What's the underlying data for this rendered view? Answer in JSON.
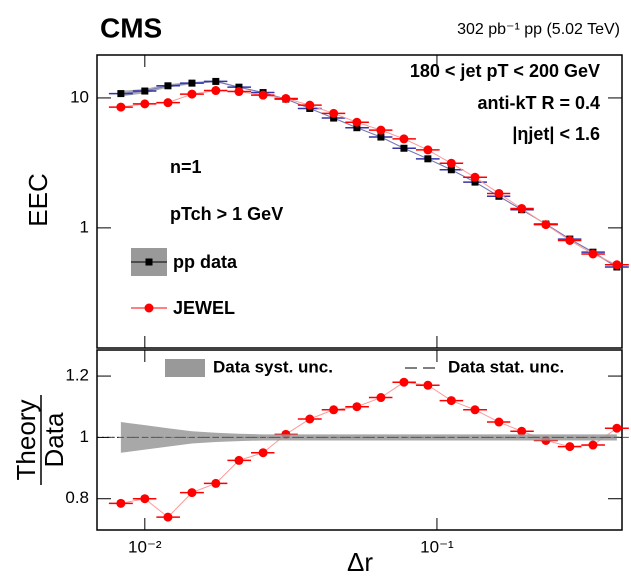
{
  "chart_data": [
    {
      "type": "scatter",
      "title": "CMS",
      "subtitle": "302 pb⁻¹ pp (5.02 TeV)",
      "ylabel": "EEC",
      "annotations": [
        "180 < jet pT < 200 GeV",
        "anti-kT R = 0.4",
        "|ηjet| < 1.6",
        "n=1",
        "pTch > 1 GeV"
      ],
      "logx": true,
      "logy": true,
      "x": [
        0.00828,
        0.01,
        0.012,
        0.0145,
        0.0175,
        0.021,
        0.0254,
        0.0304,
        0.0367,
        0.0443,
        0.0532,
        0.0643,
        0.0771,
        0.0931,
        0.112,
        0.135,
        0.163,
        0.195,
        0.236,
        0.285,
        0.342,
        0.413
      ],
      "series": [
        {
          "name": "pp data",
          "color": "#000000",
          "band_color": "#999999",
          "values": [
            10.8,
            11.3,
            12.4,
            13.0,
            13.4,
            12.1,
            11.0,
            9.8,
            8.3,
            7.0,
            5.9,
            5.0,
            4.1,
            3.4,
            2.8,
            2.25,
            1.75,
            1.38,
            1.07,
            0.82,
            0.65,
            0.5
          ],
          "yerr": [
            0.54,
            0.45,
            0.37,
            0.26,
            0.2,
            0.15,
            0.11,
            0.1,
            0.08,
            0.07,
            0.06,
            0.05,
            0.04,
            0.03,
            0.03,
            0.02,
            0.02,
            0.01,
            0.01,
            0.01,
            0.01,
            0.01
          ]
        },
        {
          "name": "JEWEL",
          "color": "#ff0000",
          "values": [
            8.5,
            9.0,
            9.2,
            10.7,
            11.4,
            11.2,
            10.5,
            9.9,
            8.8,
            7.6,
            6.5,
            5.65,
            4.84,
            3.98,
            3.14,
            2.45,
            1.84,
            1.41,
            1.06,
            0.8,
            0.63,
            0.52
          ]
        }
      ],
      "xlim": [
        0.00686,
        0.43
      ],
      "ylim": [
        0.119,
        21.4
      ],
      "xticks": [
        {
          "value": 0.01,
          "label": "10⁻²"
        },
        {
          "value": 0.1,
          "label": "10⁻¹"
        }
      ],
      "yticks": [
        1,
        10
      ]
    },
    {
      "type": "scatter",
      "xlabel": "Δr",
      "ylabel": [
        "Theory",
        "Data"
      ],
      "logx": true,
      "logy": false,
      "x": [
        0.00828,
        0.01,
        0.012,
        0.0145,
        0.0175,
        0.021,
        0.0254,
        0.0304,
        0.0367,
        0.0443,
        0.0532,
        0.0643,
        0.0771,
        0.0931,
        0.112,
        0.135,
        0.163,
        0.195,
        0.236,
        0.285,
        0.342,
        0.413
      ],
      "series": [
        {
          "name": "JEWEL",
          "color": "#ff0000",
          "values": [
            0.785,
            0.8,
            0.74,
            0.82,
            0.85,
            0.925,
            0.95,
            1.01,
            1.06,
            1.09,
            1.1,
            1.13,
            1.18,
            1.17,
            1.12,
            1.09,
            1.05,
            1.02,
            0.99,
            0.97,
            0.975,
            1.03
          ]
        },
        {
          "name": "Data syst. unc.",
          "color": "#999999",
          "center": 1,
          "values": [
            0.05,
            0.04,
            0.03,
            0.02,
            0.015,
            0.012,
            0.01,
            0.01,
            0.01,
            0.01,
            0.01,
            0.01,
            0.01,
            0.01,
            0.01,
            0.01,
            0.01,
            0.01,
            0.01,
            0.01,
            0.01,
            0.01
          ]
        },
        {
          "name": "Data stat. unc.",
          "color": "#555555"
        }
      ],
      "xlim": [
        0.00686,
        0.43
      ],
      "ylim": [
        0.698,
        1.285
      ],
      "xticks": [
        {
          "value": 0.01,
          "label": "10⁻²"
        },
        {
          "value": 0.1,
          "label": "10⁻¹"
        }
      ],
      "yticks": [
        0.8,
        1,
        1.2
      ]
    }
  ]
}
